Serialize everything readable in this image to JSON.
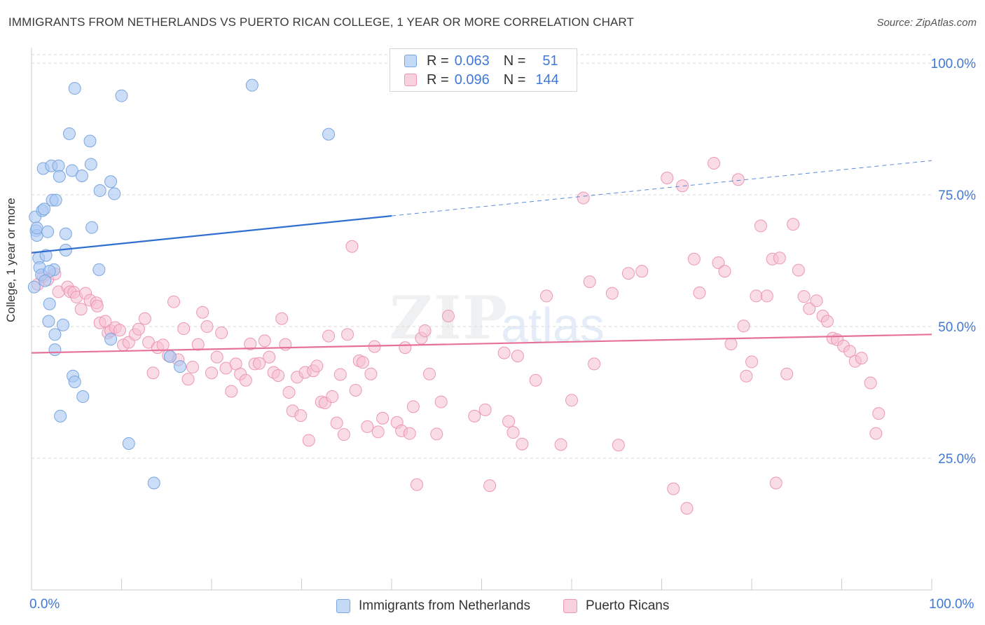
{
  "title": "IMMIGRANTS FROM NETHERLANDS VS PUERTO RICAN COLLEGE, 1 YEAR OR MORE CORRELATION CHART",
  "source": "Source: ZipAtlas.com",
  "watermark": {
    "zip": "ZIP",
    "atlas": "atlas"
  },
  "colors": {
    "blue_fill": "#aac8f2",
    "blue_stroke": "#7aa6e0",
    "blue_line": "#2f6fd0",
    "pink_fill": "#f6bfd2",
    "pink_stroke": "#ec97b5",
    "pink_line": "#e6729a",
    "axis_text": "#3f78d6",
    "grid": "#d9d9d9"
  },
  "legend_top": [
    {
      "series": "blue",
      "r_label": "R =",
      "r_value": "0.063",
      "n_label": "N =",
      "n_value": "51"
    },
    {
      "series": "pink",
      "r_label": "R =",
      "r_value": "0.096",
      "n_label": "N =",
      "n_value": "144"
    }
  ],
  "legend_bottom": [
    {
      "series": "blue",
      "label": "Immigrants from Netherlands"
    },
    {
      "series": "pink",
      "label": "Puerto Ricans"
    }
  ],
  "chart_data": {
    "type": "scatter",
    "title": "IMMIGRANTS FROM NETHERLANDS VS PUERTO RICAN COLLEGE, 1 YEAR OR MORE CORRELATION CHART",
    "xlabel": "",
    "ylabel": "College, 1 year or more",
    "xlim": [
      0,
      100
    ],
    "ylim": [
      0,
      104
    ],
    "x_tick_labels": [
      "0.0%",
      "100.0%"
    ],
    "y_ticks": [
      25,
      50,
      75,
      100
    ],
    "y_tick_labels": [
      "25.0%",
      "50.0%",
      "75.0%",
      "100.0%"
    ],
    "grid": true,
    "series": [
      {
        "name": "Immigrants from Netherlands",
        "color": "blue",
        "R": 0.063,
        "N": 51,
        "trend": {
          "x0": 0,
          "y0": 64.0,
          "x1": 40,
          "y1": 71.0,
          "dashed_to_x": 100,
          "dashed_to_y": 81.5
        },
        "points": [
          [
            0.4,
            70.8
          ],
          [
            0.5,
            68.2
          ],
          [
            0.6,
            67.3
          ],
          [
            0.6,
            68.7
          ],
          [
            0.8,
            63.0
          ],
          [
            0.9,
            61.2
          ],
          [
            1.1,
            59.8
          ],
          [
            1.2,
            72.0
          ],
          [
            1.3,
            80.0
          ],
          [
            1.4,
            72.3
          ],
          [
            1.6,
            63.5
          ],
          [
            1.8,
            68.0
          ],
          [
            1.9,
            51.0
          ],
          [
            2.0,
            54.3
          ],
          [
            2.2,
            80.5
          ],
          [
            2.3,
            74.0
          ],
          [
            2.5,
            60.8
          ],
          [
            2.6,
            48.5
          ],
          [
            2.6,
            45.6
          ],
          [
            2.7,
            74.0
          ],
          [
            3.0,
            80.5
          ],
          [
            3.1,
            78.5
          ],
          [
            3.2,
            33.0
          ],
          [
            3.5,
            50.3
          ],
          [
            3.8,
            67.6
          ],
          [
            3.8,
            64.5
          ],
          [
            4.2,
            86.6
          ],
          [
            4.5,
            79.6
          ],
          [
            4.6,
            40.6
          ],
          [
            4.8,
            95.2
          ],
          [
            4.8,
            39.5
          ],
          [
            5.6,
            78.6
          ],
          [
            5.7,
            36.7
          ],
          [
            6.5,
            85.2
          ],
          [
            6.6,
            80.8
          ],
          [
            6.7,
            68.8
          ],
          [
            7.5,
            60.8
          ],
          [
            7.6,
            75.8
          ],
          [
            8.8,
            47.6
          ],
          [
            8.8,
            77.5
          ],
          [
            9.2,
            75.2
          ],
          [
            10.0,
            93.8
          ],
          [
            10.8,
            27.8
          ],
          [
            13.6,
            20.3
          ],
          [
            15.4,
            44.3
          ],
          [
            16.5,
            42.4
          ],
          [
            24.5,
            95.8
          ],
          [
            33.0,
            86.5
          ],
          [
            2.0,
            60.5
          ],
          [
            1.5,
            58.7
          ],
          [
            0.3,
            57.5
          ]
        ]
      },
      {
        "name": "Puerto Ricans",
        "color": "pink",
        "R": 0.096,
        "N": 144,
        "trend": {
          "x0": 0,
          "y0": 45.0,
          "x1": 100,
          "y1": 48.5
        },
        "points": [
          [
            0.7,
            58.0
          ],
          [
            1.3,
            59.5
          ],
          [
            1.8,
            58.9
          ],
          [
            2.6,
            60.0
          ],
          [
            3.0,
            56.6
          ],
          [
            4.0,
            57.5
          ],
          [
            4.3,
            56.6
          ],
          [
            4.7,
            56.5
          ],
          [
            5.0,
            55.6
          ],
          [
            5.5,
            53.3
          ],
          [
            6.0,
            56.3
          ],
          [
            6.5,
            55.0
          ],
          [
            7.2,
            54.5
          ],
          [
            7.3,
            53.9
          ],
          [
            7.6,
            50.7
          ],
          [
            8.2,
            51.0
          ],
          [
            8.5,
            48.8
          ],
          [
            8.8,
            49.2
          ],
          [
            9.3,
            49.8
          ],
          [
            9.8,
            49.3
          ],
          [
            10.2,
            46.5
          ],
          [
            10.8,
            47.0
          ],
          [
            11.5,
            48.5
          ],
          [
            11.9,
            49.5
          ],
          [
            12.6,
            51.5
          ],
          [
            13.0,
            47.0
          ],
          [
            13.5,
            41.2
          ],
          [
            14.0,
            46.0
          ],
          [
            14.6,
            46.5
          ],
          [
            15.2,
            44.5
          ],
          [
            15.8,
            54.7
          ],
          [
            16.3,
            43.7
          ],
          [
            16.9,
            49.6
          ],
          [
            17.4,
            40.0
          ],
          [
            17.9,
            42.3
          ],
          [
            18.5,
            46.6
          ],
          [
            19.0,
            52.7
          ],
          [
            19.5,
            50.0
          ],
          [
            20.0,
            41.2
          ],
          [
            20.6,
            44.2
          ],
          [
            21.1,
            48.8
          ],
          [
            21.6,
            42.1
          ],
          [
            22.2,
            37.7
          ],
          [
            22.7,
            42.9
          ],
          [
            23.2,
            41.0
          ],
          [
            23.8,
            39.8
          ],
          [
            24.3,
            46.7
          ],
          [
            24.8,
            42.9
          ],
          [
            25.3,
            43.0
          ],
          [
            25.9,
            47.3
          ],
          [
            26.4,
            44.2
          ],
          [
            26.9,
            41.3
          ],
          [
            27.4,
            40.7
          ],
          [
            27.8,
            51.5
          ],
          [
            28.2,
            46.6
          ],
          [
            28.6,
            37.5
          ],
          [
            29.0,
            34.0
          ],
          [
            29.5,
            40.4
          ],
          [
            29.9,
            33.1
          ],
          [
            30.4,
            41.3
          ],
          [
            30.8,
            28.4
          ],
          [
            31.3,
            41.6
          ],
          [
            31.7,
            42.5
          ],
          [
            32.2,
            35.7
          ],
          [
            32.6,
            35.5
          ],
          [
            33.0,
            48.2
          ],
          [
            33.4,
            36.7
          ],
          [
            33.9,
            31.7
          ],
          [
            34.3,
            40.9
          ],
          [
            34.7,
            29.5
          ],
          [
            35.1,
            48.5
          ],
          [
            35.6,
            65.2
          ],
          [
            36.0,
            37.9
          ],
          [
            36.4,
            43.5
          ],
          [
            36.8,
            43.2
          ],
          [
            37.3,
            31.0
          ],
          [
            37.7,
            41.0
          ],
          [
            38.1,
            46.2
          ],
          [
            38.5,
            30.0
          ],
          [
            39.0,
            32.6
          ],
          [
            40.6,
            31.8
          ],
          [
            41.1,
            30.2
          ],
          [
            41.5,
            46.0
          ],
          [
            42.0,
            29.7
          ],
          [
            42.4,
            34.8
          ],
          [
            42.8,
            20.0
          ],
          [
            43.3,
            47.8
          ],
          [
            43.7,
            49.2
          ],
          [
            44.2,
            41.0
          ],
          [
            45.0,
            29.6
          ],
          [
            45.5,
            35.7
          ],
          [
            46.3,
            52.0
          ],
          [
            49.2,
            33.0
          ],
          [
            50.4,
            34.2
          ],
          [
            50.9,
            19.8
          ],
          [
            52.5,
            45.0
          ],
          [
            53.0,
            32.0
          ],
          [
            53.5,
            29.9
          ],
          [
            54.0,
            44.4
          ],
          [
            54.5,
            27.7
          ],
          [
            56.0,
            39.8
          ],
          [
            57.2,
            55.8
          ],
          [
            58.8,
            27.6
          ],
          [
            60.0,
            36.0
          ],
          [
            61.3,
            74.4
          ],
          [
            62.0,
            58.5
          ],
          [
            62.5,
            42.9
          ],
          [
            64.5,
            56.3
          ],
          [
            65.2,
            27.5
          ],
          [
            66.3,
            60.1
          ],
          [
            67.8,
            60.5
          ],
          [
            70.6,
            78.2
          ],
          [
            71.3,
            19.2
          ],
          [
            72.3,
            76.7
          ],
          [
            72.8,
            15.5
          ],
          [
            73.6,
            62.8
          ],
          [
            74.2,
            56.4
          ],
          [
            75.8,
            81.0
          ],
          [
            76.3,
            62.1
          ],
          [
            77.0,
            60.5
          ],
          [
            77.7,
            46.7
          ],
          [
            78.5,
            77.9
          ],
          [
            79.1,
            50.1
          ],
          [
            79.4,
            40.6
          ],
          [
            80.0,
            43.3
          ],
          [
            80.5,
            55.8
          ],
          [
            81.0,
            69.1
          ],
          [
            81.7,
            55.8
          ],
          [
            82.3,
            62.8
          ],
          [
            82.7,
            20.3
          ],
          [
            83.1,
            63.0
          ],
          [
            83.9,
            41.0
          ],
          [
            84.6,
            69.4
          ],
          [
            85.2,
            60.7
          ],
          [
            85.8,
            55.7
          ],
          [
            86.4,
            53.4
          ],
          [
            87.2,
            54.9
          ],
          [
            87.9,
            52.0
          ],
          [
            88.4,
            51.0
          ],
          [
            89.0,
            47.8
          ],
          [
            89.5,
            47.5
          ],
          [
            90.2,
            46.3
          ],
          [
            90.9,
            45.3
          ],
          [
            91.5,
            43.4
          ],
          [
            92.2,
            44.0
          ],
          [
            93.2,
            39.3
          ],
          [
            93.8,
            29.7
          ],
          [
            94.1,
            33.5
          ]
        ]
      }
    ]
  },
  "axis": {
    "ylabel": "College, 1 year or more",
    "x_left": "0.0%",
    "x_right": "100.0%"
  }
}
